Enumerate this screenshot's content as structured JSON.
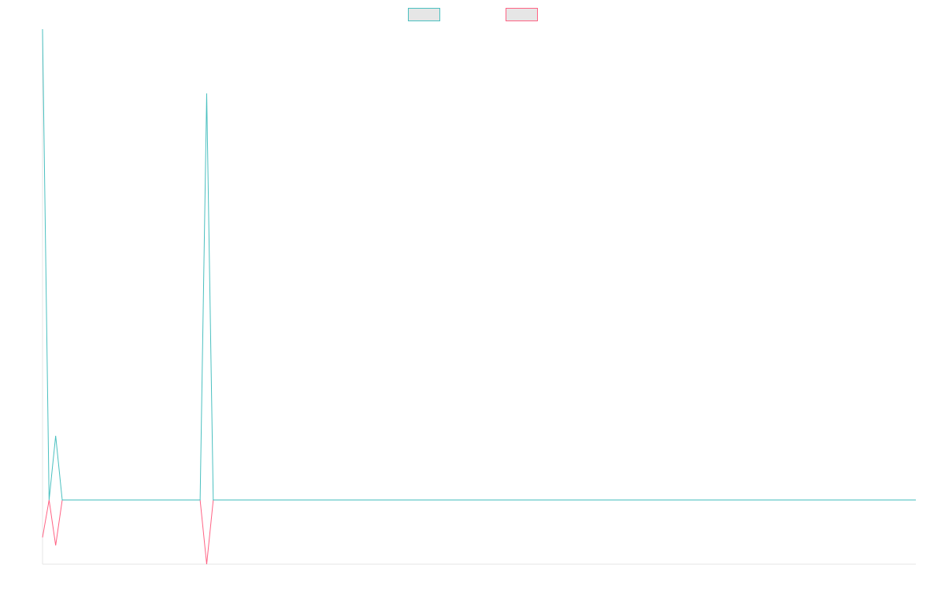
{
  "chart_data": {
    "type": "line",
    "title": "",
    "xlabel": "",
    "ylabel": "",
    "x": [
      1,
      2,
      3,
      4,
      5,
      6,
      7,
      8,
      9,
      10,
      11,
      12,
      13,
      14,
      15,
      16,
      17,
      18,
      19,
      20,
      21,
      22,
      23,
      24,
      25,
      26,
      27,
      28,
      29,
      30,
      31,
      32,
      33,
      34,
      35,
      36,
      37,
      38,
      39,
      40,
      41,
      42,
      43,
      44,
      45,
      46,
      47,
      48,
      49,
      50,
      51,
      52,
      53,
      54,
      55,
      56,
      57,
      58,
      59,
      60,
      61,
      62,
      63,
      64,
      65,
      66,
      67,
      68,
      69,
      70,
      71,
      72,
      73,
      74,
      75,
      76,
      77,
      78,
      79,
      80,
      81,
      82,
      83,
      84,
      85,
      86,
      87,
      88,
      89,
      90,
      91,
      92,
      93,
      94,
      95,
      96,
      97,
      98,
      99,
      100,
      101,
      102,
      103,
      104,
      105,
      106,
      107,
      108,
      109,
      110,
      111,
      112,
      113,
      114,
      115,
      116,
      117,
      118,
      119,
      120,
      121,
      122,
      123,
      124,
      125,
      126,
      127,
      128,
      129,
      130,
      131,
      132,
      133,
      134
    ],
    "ylim": [
      -0.12,
      0.88
    ],
    "grid": false,
    "legend_position": "top-center",
    "series": [
      {
        "color": "#4bc0c0",
        "values": [
          0.88,
          0,
          0.12,
          0,
          0,
          0,
          0,
          0,
          0,
          0,
          0,
          0,
          0,
          0,
          0,
          0,
          0,
          0,
          0,
          0,
          0,
          0,
          0,
          0,
          0,
          0.76,
          0,
          0,
          0,
          0,
          0,
          0,
          0,
          0,
          0,
          0,
          0,
          0,
          0,
          0,
          0,
          0,
          0,
          0,
          0,
          0,
          0,
          0,
          0,
          0,
          0,
          0,
          0,
          0,
          0,
          0,
          0,
          0,
          0,
          0,
          0,
          0,
          0,
          0,
          0,
          0,
          0,
          0,
          0,
          0,
          0,
          0,
          0,
          0,
          0,
          0,
          0,
          0,
          0,
          0,
          0,
          0,
          0,
          0,
          0,
          0,
          0,
          0,
          0,
          0,
          0,
          0,
          0,
          0,
          0,
          0,
          0,
          0,
          0,
          0,
          0,
          0,
          0,
          0,
          0,
          0,
          0,
          0,
          0,
          0,
          0,
          0,
          0,
          0,
          0,
          0,
          0,
          0,
          0,
          0,
          0,
          0,
          0,
          0,
          0,
          0,
          0,
          0,
          0,
          0,
          0,
          0,
          0,
          0
        ]
      },
      {
        "color": "#ff6384",
        "values": [
          -0.07,
          0,
          -0.085,
          0,
          0,
          0,
          0,
          0,
          0,
          0,
          0,
          0,
          0,
          0,
          0,
          0,
          0,
          0,
          0,
          0,
          0,
          0,
          0,
          0,
          0,
          -0.12,
          0,
          0,
          0,
          0,
          0,
          0,
          0,
          0,
          0,
          0,
          0,
          0,
          0,
          0,
          0,
          0,
          0,
          0,
          0,
          0,
          0,
          0,
          0,
          0,
          0,
          0,
          0,
          0,
          0,
          0,
          0,
          0,
          0,
          0,
          0,
          0,
          0,
          0,
          0,
          0,
          0,
          0,
          0,
          0,
          0,
          0,
          0,
          0,
          0,
          0,
          0,
          0,
          0,
          0,
          0,
          0,
          0,
          0,
          0,
          0,
          0,
          0,
          0,
          0,
          0,
          0,
          0,
          0,
          0,
          0,
          0,
          0,
          0,
          0,
          0,
          0,
          0,
          0,
          0,
          0,
          0,
          0,
          0,
          0,
          0,
          0,
          0,
          0,
          0,
          0,
          0,
          0,
          0,
          0,
          0,
          0,
          0,
          0,
          0,
          0,
          0,
          0,
          0,
          0,
          0,
          0,
          0,
          0
        ]
      }
    ]
  }
}
